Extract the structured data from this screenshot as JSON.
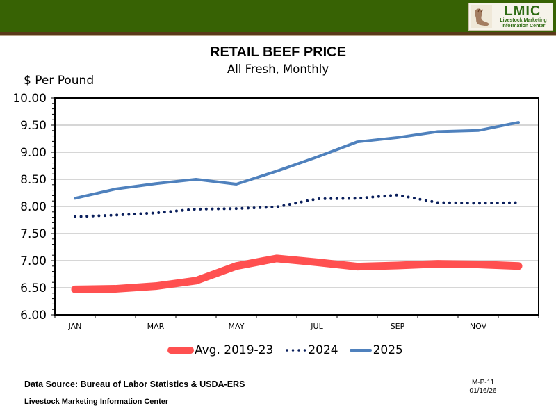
{
  "header": {
    "logo_title": "LMIC",
    "logo_subtitle_line1": "Livestock Marketing",
    "logo_subtitle_line2": "Information Center",
    "colors": {
      "band": "#376204",
      "stripe": "#5a3a1a",
      "logo_text": "#2d6b12"
    }
  },
  "footer": {
    "source": "Data Source: Bureau of Labor Statistics & USDA-ERS",
    "org": "Livestock Marketing Information Center",
    "chart_id": "M-P-11",
    "date": "01/16/26"
  },
  "chart_data": {
    "type": "line",
    "title": "RETAIL BEEF PRICE",
    "subtitle": "All Fresh, Monthly",
    "ylabel": "$ Per Pound",
    "xlabel": "",
    "ylim": [
      6.0,
      10.0
    ],
    "y_ticks": [
      "6.00",
      "6.50",
      "7.00",
      "7.50",
      "8.00",
      "8.50",
      "9.00",
      "9.50",
      "10.00"
    ],
    "y_tick_values": [
      6.0,
      6.5,
      7.0,
      7.5,
      8.0,
      8.5,
      9.0,
      9.5,
      10.0
    ],
    "categories": [
      "JAN",
      "FEB",
      "MAR",
      "APR",
      "MAY",
      "JUN",
      "JUL",
      "AUG",
      "SEP",
      "OCT",
      "NOV",
      "DEC"
    ],
    "x_tick_labels": [
      "JAN",
      "",
      "MAR",
      "",
      "MAY",
      "",
      "JUL",
      "",
      "SEP",
      "",
      "NOV",
      ""
    ],
    "grid": true,
    "legend_position": "bottom",
    "series": [
      {
        "name": "Avg. 2019-23",
        "style": "solid-thick",
        "color": "#ff5050",
        "values": [
          6.47,
          6.48,
          6.53,
          6.63,
          6.9,
          7.04,
          6.97,
          6.89,
          6.91,
          6.94,
          6.93,
          6.9
        ]
      },
      {
        "name": "2024",
        "style": "dotted",
        "color": "#0a1f5c",
        "values": [
          7.81,
          7.84,
          7.88,
          7.95,
          7.96,
          7.99,
          8.14,
          8.15,
          8.21,
          8.07,
          8.06,
          8.07
        ]
      },
      {
        "name": "2025",
        "style": "solid",
        "color": "#4f81bd",
        "values": [
          8.15,
          8.32,
          8.42,
          8.5,
          8.41,
          8.65,
          8.91,
          9.19,
          9.27,
          9.38,
          9.4,
          9.55
        ]
      }
    ]
  }
}
